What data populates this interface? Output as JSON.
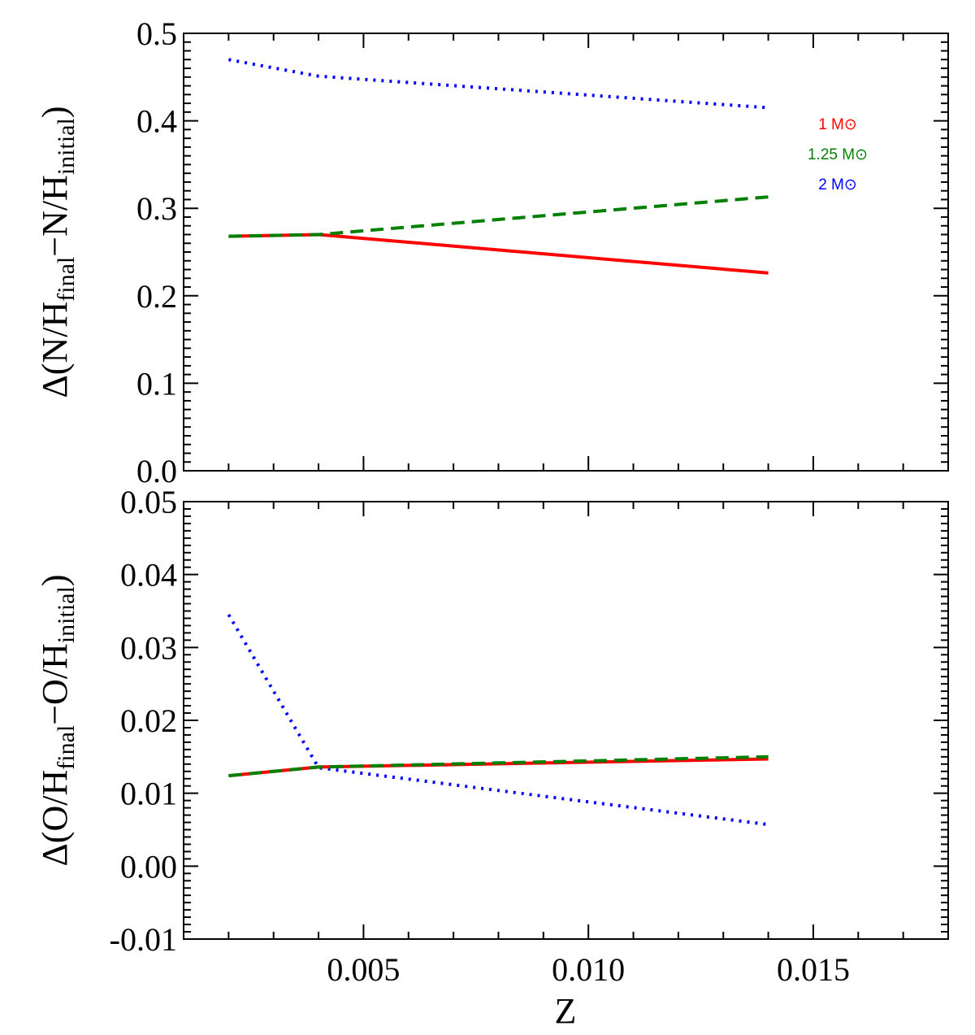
{
  "chart_data": {
    "type": "line",
    "xlabel": "Z",
    "xlim": [
      0.001,
      0.018
    ],
    "xticks": [
      {
        "value": 0.005,
        "label": "0.005"
      },
      {
        "value": 0.01,
        "label": "0.010"
      },
      {
        "value": 0.015,
        "label": "0.015"
      }
    ],
    "legend": [
      {
        "label": "1 M⊙",
        "color": "#ff0000",
        "style": "solid"
      },
      {
        "label": "1.25 M⊙",
        "color": "#008000",
        "style": "dashed"
      },
      {
        "label": "2 M⊙",
        "color": "#0000ff",
        "style": "dotted"
      }
    ],
    "panels": [
      {
        "id": "nh",
        "ylabel": {
          "main": "Δ(N/H",
          "sub1": "final",
          "mid": "−N/H",
          "sub2": "initial",
          "close": ")"
        },
        "ylim": [
          0.0,
          0.5
        ],
        "yticks": [
          {
            "value": 0.0,
            "label": "0.0"
          },
          {
            "value": 0.1,
            "label": "0.1"
          },
          {
            "value": 0.2,
            "label": "0.2"
          },
          {
            "value": 0.3,
            "label": "0.3"
          },
          {
            "value": 0.4,
            "label": "0.4"
          },
          {
            "value": 0.5,
            "label": "0.5"
          }
        ],
        "series": [
          {
            "name": "1 M⊙",
            "color": "#ff0000",
            "style": "solid",
            "x": [
              0.002,
              0.004,
              0.014
            ],
            "y": [
              0.268,
              0.27,
              0.226
            ]
          },
          {
            "name": "1.25 M⊙",
            "color": "#008000",
            "style": "dashed",
            "x": [
              0.002,
              0.004,
              0.014
            ],
            "y": [
              0.268,
              0.27,
              0.313
            ]
          },
          {
            "name": "2 M⊙",
            "color": "#0000ff",
            "style": "dotted",
            "x": [
              0.002,
              0.004,
              0.014
            ],
            "y": [
              0.47,
              0.451,
              0.415
            ]
          }
        ]
      },
      {
        "id": "oh",
        "ylabel": {
          "main": "Δ(O/H",
          "sub1": "final",
          "mid": "−O/H",
          "sub2": "initial",
          "close": ")"
        },
        "ylim": [
          -0.01,
          0.05
        ],
        "yticks": [
          {
            "value": -0.01,
            "label": "-0.01"
          },
          {
            "value": 0.0,
            "label": "0.00"
          },
          {
            "value": 0.01,
            "label": "0.01"
          },
          {
            "value": 0.02,
            "label": "0.02"
          },
          {
            "value": 0.03,
            "label": "0.03"
          },
          {
            "value": 0.04,
            "label": "0.04"
          },
          {
            "value": 0.05,
            "label": "0.05"
          }
        ],
        "series": [
          {
            "name": "1 M⊙",
            "color": "#ff0000",
            "style": "solid",
            "x": [
              0.002,
              0.004,
              0.014
            ],
            "y": [
              0.0124,
              0.0136,
              0.0147
            ]
          },
          {
            "name": "1.25 M⊙",
            "color": "#008000",
            "style": "dashed",
            "x": [
              0.002,
              0.004,
              0.014
            ],
            "y": [
              0.0124,
              0.0136,
              0.015
            ]
          },
          {
            "name": "2 M⊙",
            "color": "#0000ff",
            "style": "dotted",
            "x": [
              0.002,
              0.004,
              0.014
            ],
            "y": [
              0.0345,
              0.0135,
              0.0057
            ]
          }
        ]
      }
    ]
  }
}
